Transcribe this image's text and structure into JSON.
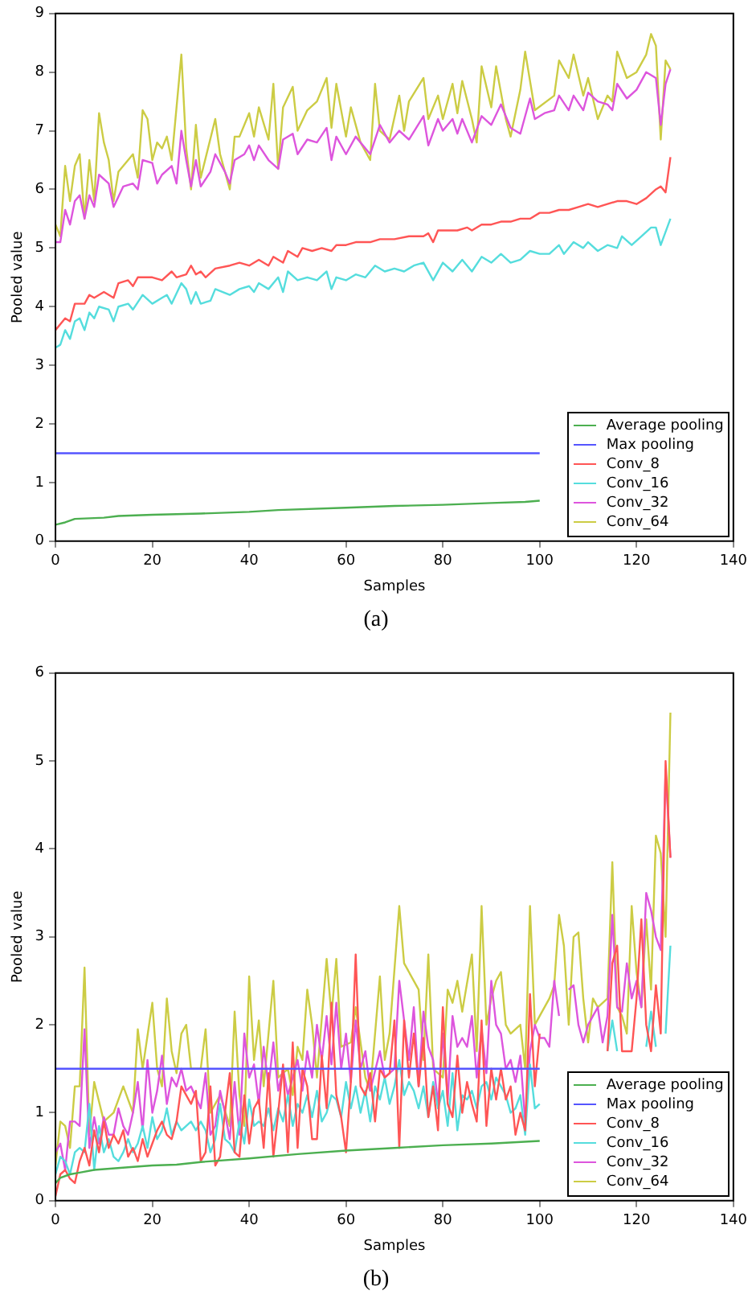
{
  "chart_data": [
    {
      "type": "line",
      "xlabel": "Samples",
      "ylabel": "Pooled value",
      "xlim": [
        0,
        140
      ],
      "xticks": [
        0,
        20,
        40,
        60,
        80,
        100,
        120,
        140
      ],
      "ylim": [
        0,
        9
      ],
      "yticks": [
        0,
        1,
        2,
        3,
        4,
        5,
        6,
        7,
        8,
        9
      ],
      "grid": false,
      "legend": "bottom right",
      "marker": "none",
      "line_style": "solid",
      "annotations": [
        "(a)"
      ],
      "series": [
        {
          "name": "Average pooling",
          "color": "#4caf50",
          "x": [
            0,
            2,
            4,
            10,
            13,
            20,
            30,
            40,
            46,
            60,
            70,
            80,
            90,
            97,
            100
          ],
          "values": [
            0.28,
            0.32,
            0.38,
            0.4,
            0.43,
            0.45,
            0.47,
            0.5,
            0.53,
            0.57,
            0.6,
            0.62,
            0.65,
            0.67,
            0.69
          ]
        },
        {
          "name": "Max pooling",
          "color": "#5555ff",
          "x": [
            0,
            100
          ],
          "values": [
            1.5,
            1.5
          ]
        },
        {
          "name": "Conv_8",
          "color": "#ff5555",
          "x": [
            0,
            2,
            3,
            4,
            6,
            7,
            8,
            10,
            12,
            13,
            15,
            16,
            17,
            20,
            22,
            24,
            25,
            27,
            28,
            29,
            30,
            31,
            33,
            36,
            38,
            40,
            42,
            44,
            45,
            47,
            48,
            50,
            51,
            53,
            55,
            57,
            58,
            60,
            62,
            65,
            67,
            70,
            73,
            76,
            77,
            78,
            79,
            81,
            83,
            85,
            86,
            88,
            90,
            92,
            94,
            96,
            98,
            100,
            102,
            104,
            106,
            108,
            110,
            112,
            114,
            116,
            118,
            120,
            122,
            124,
            125,
            126,
            127
          ],
          "values": [
            3.6,
            3.8,
            3.75,
            4.05,
            4.05,
            4.2,
            4.15,
            4.25,
            4.15,
            4.4,
            4.45,
            4.35,
            4.5,
            4.5,
            4.45,
            4.6,
            4.5,
            4.55,
            4.7,
            4.55,
            4.6,
            4.5,
            4.65,
            4.7,
            4.75,
            4.7,
            4.8,
            4.7,
            4.85,
            4.75,
            4.95,
            4.85,
            5.0,
            4.95,
            5.0,
            4.95,
            5.05,
            5.05,
            5.1,
            5.1,
            5.15,
            5.15,
            5.2,
            5.2,
            5.25,
            5.1,
            5.3,
            5.3,
            5.3,
            5.35,
            5.3,
            5.4,
            5.4,
            5.45,
            5.45,
            5.5,
            5.5,
            5.6,
            5.6,
            5.65,
            5.65,
            5.7,
            5.75,
            5.7,
            5.75,
            5.8,
            5.8,
            5.75,
            5.85,
            6.0,
            6.05,
            5.95,
            6.55
          ]
        },
        {
          "name": "Conv_16",
          "color": "#55dddd",
          "x": [
            0,
            1,
            2,
            3,
            4,
            5,
            6,
            7,
            8,
            9,
            11,
            12,
            13,
            15,
            16,
            18,
            20,
            22,
            23,
            24,
            26,
            27,
            28,
            29,
            30,
            32,
            33,
            36,
            38,
            40,
            41,
            42,
            44,
            46,
            47,
            48,
            50,
            52,
            54,
            56,
            57,
            58,
            60,
            62,
            64,
            66,
            68,
            70,
            72,
            74,
            76,
            78,
            80,
            82,
            84,
            86,
            88,
            90,
            92,
            94,
            96,
            98,
            100,
            102,
            104,
            105,
            107,
            109,
            110,
            112,
            114,
            116,
            117,
            119,
            121,
            123,
            124,
            125,
            127
          ],
          "values": [
            3.3,
            3.35,
            3.6,
            3.45,
            3.75,
            3.8,
            3.6,
            3.9,
            3.8,
            4.0,
            3.95,
            3.75,
            4.0,
            4.05,
            3.95,
            4.2,
            4.05,
            4.15,
            4.2,
            4.05,
            4.4,
            4.3,
            4.05,
            4.25,
            4.05,
            4.1,
            4.3,
            4.2,
            4.3,
            4.35,
            4.25,
            4.4,
            4.3,
            4.5,
            4.25,
            4.6,
            4.45,
            4.5,
            4.45,
            4.6,
            4.3,
            4.5,
            4.45,
            4.55,
            4.5,
            4.7,
            4.6,
            4.65,
            4.6,
            4.7,
            4.75,
            4.45,
            4.75,
            4.6,
            4.8,
            4.6,
            4.85,
            4.75,
            4.9,
            4.75,
            4.8,
            4.95,
            4.9,
            4.9,
            5.05,
            4.9,
            5.1,
            5.0,
            5.1,
            4.95,
            5.05,
            5.0,
            5.2,
            5.05,
            5.2,
            5.35,
            5.35,
            5.05,
            5.5
          ]
        },
        {
          "name": "Conv_32",
          "color": "#dd55dd",
          "x": [
            0,
            1,
            2,
            3,
            4,
            5,
            6,
            7,
            8,
            9,
            11,
            12,
            14,
            16,
            17,
            18,
            20,
            21,
            22,
            24,
            25,
            26,
            27,
            28,
            29,
            30,
            32,
            33,
            35,
            36,
            37,
            39,
            40,
            41,
            42,
            44,
            46,
            47,
            49,
            50,
            52,
            54,
            56,
            57,
            58,
            60,
            62,
            65,
            67,
            69,
            71,
            73,
            76,
            77,
            79,
            80,
            82,
            83,
            84,
            86,
            88,
            90,
            92,
            94,
            96,
            98,
            99,
            101,
            103,
            104,
            106,
            107,
            109,
            110,
            112,
            114,
            115,
            116,
            118,
            120,
            122,
            124,
            125,
            126,
            127
          ],
          "values": [
            5.1,
            5.1,
            5.65,
            5.4,
            5.8,
            5.9,
            5.5,
            5.9,
            5.7,
            6.25,
            6.1,
            5.7,
            6.05,
            6.1,
            6.0,
            6.5,
            6.45,
            6.1,
            6.25,
            6.4,
            6.1,
            7.0,
            6.5,
            6.05,
            6.5,
            6.05,
            6.3,
            6.6,
            6.3,
            6.1,
            6.5,
            6.6,
            6.75,
            6.5,
            6.75,
            6.5,
            6.35,
            6.85,
            6.95,
            6.6,
            6.85,
            6.8,
            7.05,
            6.5,
            6.9,
            6.6,
            6.9,
            6.6,
            7.1,
            6.8,
            7.0,
            6.85,
            7.25,
            6.75,
            7.2,
            7.0,
            7.2,
            6.95,
            7.2,
            6.8,
            7.25,
            7.1,
            7.45,
            7.05,
            6.95,
            7.55,
            7.2,
            7.3,
            7.35,
            7.6,
            7.35,
            7.6,
            7.35,
            7.65,
            7.5,
            7.45,
            7.35,
            7.8,
            7.55,
            7.7,
            8.0,
            7.9,
            7.1,
            7.8,
            8.05
          ]
        },
        {
          "name": "Conv_64",
          "color": "#cccc44",
          "x": [
            0,
            1,
            2,
            3,
            4,
            5,
            6,
            7,
            8,
            9,
            10,
            11,
            12,
            13,
            15,
            16,
            17,
            18,
            19,
            20,
            21,
            22,
            23,
            24,
            26,
            27,
            28,
            29,
            30,
            33,
            34,
            36,
            37,
            38,
            40,
            41,
            42,
            44,
            45,
            46,
            47,
            49,
            50,
            52,
            54,
            56,
            57,
            58,
            60,
            61,
            63,
            65,
            66,
            67,
            69,
            71,
            72,
            73,
            76,
            77,
            79,
            80,
            82,
            83,
            84,
            86,
            87,
            88,
            90,
            91,
            93,
            94,
            96,
            97,
            99,
            103,
            104,
            106,
            107,
            109,
            110,
            112,
            114,
            115,
            116,
            118,
            120,
            122,
            123,
            124,
            125,
            126,
            127
          ],
          "values": [
            5.4,
            5.2,
            6.4,
            5.8,
            6.4,
            6.6,
            5.5,
            6.5,
            5.8,
            7.3,
            6.8,
            6.5,
            5.8,
            6.3,
            6.5,
            6.6,
            6.2,
            7.35,
            7.2,
            6.5,
            6.8,
            6.7,
            6.9,
            6.5,
            8.3,
            6.7,
            6.0,
            7.1,
            6.2,
            7.2,
            6.6,
            6.0,
            6.9,
            6.9,
            7.3,
            6.9,
            7.4,
            6.85,
            7.8,
            6.35,
            7.4,
            7.75,
            7.0,
            7.35,
            7.5,
            7.9,
            7.05,
            7.8,
            6.9,
            7.4,
            6.8,
            6.5,
            7.8,
            7.0,
            6.85,
            7.6,
            7.0,
            7.5,
            7.9,
            7.2,
            7.6,
            7.2,
            7.8,
            7.3,
            7.85,
            7.2,
            6.8,
            8.1,
            7.4,
            8.1,
            7.2,
            6.9,
            7.7,
            8.35,
            7.35,
            7.6,
            8.2,
            7.9,
            8.3,
            7.6,
            7.9,
            7.2,
            7.6,
            7.5,
            8.35,
            7.9,
            8.0,
            8.3,
            8.65,
            8.45,
            6.85,
            8.2,
            8.05
          ]
        }
      ]
    },
    {
      "type": "line",
      "xlabel": "Samples",
      "ylabel": "Pooled value",
      "xlim": [
        0,
        140
      ],
      "xticks": [
        0,
        20,
        40,
        60,
        80,
        100,
        120,
        140
      ],
      "ylim": [
        0,
        6
      ],
      "yticks": [
        0,
        1,
        2,
        3,
        4,
        5,
        6
      ],
      "grid": false,
      "legend": "bottom right",
      "marker": "none",
      "line_style": "solid",
      "annotations": [
        "(b)"
      ],
      "series": [
        {
          "name": "Average pooling",
          "color": "#4caf50",
          "x": [
            0,
            1,
            3,
            5,
            8,
            15,
            20,
            25,
            30,
            40,
            50,
            60,
            70,
            80,
            90,
            100
          ],
          "values": [
            0.2,
            0.26,
            0.3,
            0.32,
            0.35,
            0.38,
            0.4,
            0.41,
            0.44,
            0.48,
            0.53,
            0.57,
            0.6,
            0.63,
            0.65,
            0.68
          ]
        },
        {
          "name": "Max pooling",
          "color": "#5555ff",
          "x": [
            0,
            100
          ],
          "values": [
            1.5,
            1.5
          ]
        },
        {
          "name": "Conv_8",
          "color": "#ff5555",
          "x": [
            0,
            1,
            2,
            3,
            4,
            5,
            6,
            7,
            8,
            9,
            10,
            11,
            12,
            13,
            14,
            15,
            16,
            17,
            18,
            19,
            20,
            21,
            22,
            23,
            24,
            25,
            26,
            27,
            28,
            29,
            30,
            31,
            32,
            33,
            34,
            35,
            36,
            37,
            38,
            39,
            40,
            41,
            42,
            43,
            44,
            45,
            46,
            47,
            48,
            49,
            50,
            51,
            52,
            53,
            54,
            55,
            56,
            57,
            58,
            59,
            60,
            61,
            62,
            63,
            64,
            65,
            66,
            67,
            68,
            69,
            70,
            71,
            72,
            73,
            74,
            75,
            76,
            77,
            78,
            79,
            80,
            81,
            82,
            83,
            84,
            85,
            86,
            87,
            88,
            89,
            90,
            91,
            92,
            93,
            94,
            95,
            96,
            97,
            98,
            99,
            100,
            101,
            114,
            115,
            116,
            117,
            119,
            120,
            121,
            122,
            123,
            124,
            125,
            126,
            127
          ],
          "values": [
            0.05,
            0.3,
            0.35,
            0.25,
            0.2,
            0.45,
            0.6,
            0.4,
            0.8,
            0.55,
            0.9,
            0.6,
            0.75,
            0.65,
            0.8,
            0.5,
            0.6,
            0.45,
            0.7,
            0.5,
            0.65,
            0.8,
            0.9,
            0.75,
            0.7,
            0.9,
            1.3,
            1.2,
            1.1,
            1.25,
            0.45,
            0.55,
            1.3,
            0.4,
            0.5,
            1.0,
            1.45,
            0.55,
            0.5,
            1.2,
            0.65,
            1.05,
            1.15,
            0.6,
            1.45,
            0.5,
            1.0,
            1.55,
            0.55,
            1.8,
            0.6,
            1.5,
            1.3,
            0.7,
            0.7,
            1.65,
            1.05,
            2.25,
            1.2,
            0.95,
            0.55,
            1.35,
            2.8,
            1.3,
            1.2,
            1.45,
            0.9,
            1.5,
            1.4,
            1.45,
            2.05,
            0.6,
            2.05,
            1.4,
            1.9,
            1.3,
            1.85,
            0.95,
            1.3,
            0.8,
            2.2,
            1.1,
            0.95,
            1.65,
            1.0,
            1.35,
            1.1,
            0.9,
            2.05,
            0.85,
            1.5,
            1.15,
            1.5,
            1.15,
            1.3,
            0.75,
            1.0,
            0.8,
            2.35,
            1.3,
            1.9,
            null,
            1.7,
            2.7,
            2.9,
            1.7,
            1.7,
            2.3,
            3.2,
            2.0,
            1.7,
            2.45,
            1.9,
            5.0,
            3.9
          ]
        },
        {
          "name": "Conv_16",
          "color": "#55dddd",
          "x": [
            0,
            1,
            2,
            3,
            4,
            5,
            6,
            7,
            8,
            9,
            10,
            11,
            12,
            13,
            14,
            15,
            16,
            17,
            18,
            19,
            20,
            21,
            22,
            23,
            24,
            25,
            26,
            27,
            28,
            29,
            30,
            31,
            32,
            33,
            34,
            35,
            36,
            37,
            38,
            39,
            40,
            41,
            42,
            43,
            44,
            45,
            46,
            47,
            48,
            49,
            50,
            51,
            52,
            53,
            54,
            55,
            56,
            57,
            58,
            59,
            60,
            61,
            62,
            63,
            64,
            65,
            66,
            67,
            68,
            69,
            70,
            71,
            72,
            73,
            74,
            75,
            76,
            77,
            78,
            79,
            80,
            81,
            82,
            83,
            84,
            85,
            86,
            87,
            88,
            89,
            90,
            91,
            92,
            93,
            94,
            95,
            96,
            97,
            98,
            99,
            100,
            101,
            114,
            115,
            116,
            117,
            122,
            123,
            124,
            125,
            126,
            127
          ],
          "values": [
            0.3,
            0.5,
            0.45,
            0.3,
            0.55,
            0.6,
            0.55,
            1.1,
            0.35,
            0.85,
            0.55,
            0.7,
            0.5,
            0.45,
            0.55,
            0.7,
            0.55,
            0.65,
            0.85,
            0.6,
            0.95,
            0.7,
            0.8,
            1.05,
            0.75,
            0.9,
            0.8,
            0.85,
            0.9,
            0.8,
            0.9,
            0.8,
            0.55,
            0.7,
            1.1,
            0.7,
            0.65,
            0.55,
            0.9,
            0.65,
            1.15,
            0.85,
            0.9,
            0.85,
            1.05,
            0.8,
            1.05,
            0.9,
            1.2,
            0.85,
            1.1,
            1.0,
            1.2,
            0.95,
            1.25,
            0.9,
            1.0,
            1.2,
            1.15,
            0.95,
            1.35,
            1.05,
            1.3,
            1.0,
            1.25,
            0.9,
            1.3,
            1.15,
            1.4,
            1.1,
            1.3,
            1.6,
            1.2,
            1.35,
            1.25,
            1.05,
            1.3,
            0.95,
            1.35,
            1.05,
            1.25,
            0.85,
            1.45,
            0.8,
            1.2,
            1.15,
            1.25,
            1.05,
            1.3,
            1.35,
            1.15,
            1.4,
            1.3,
            1.2,
            1.0,
            1.05,
            1.2,
            0.75,
            1.55,
            1.05,
            1.1,
            null,
            1.7,
            2.05,
            1.7,
            null,
            1.75,
            2.15,
            1.75,
            null,
            1.9,
            2.9
          ]
        },
        {
          "name": "Conv_32",
          "color": "#dd55dd",
          "x": [
            0,
            1,
            2,
            3,
            4,
            5,
            6,
            7,
            8,
            9,
            10,
            11,
            12,
            13,
            14,
            15,
            16,
            17,
            18,
            19,
            20,
            21,
            22,
            23,
            24,
            25,
            26,
            27,
            28,
            30,
            31,
            32,
            33,
            34,
            35,
            36,
            37,
            38,
            39,
            40,
            41,
            42,
            43,
            44,
            45,
            46,
            47,
            48,
            50,
            51,
            52,
            53,
            54,
            55,
            56,
            57,
            58,
            59,
            60,
            61,
            62,
            63,
            64,
            65,
            67,
            68,
            70,
            71,
            72,
            73,
            74,
            75,
            76,
            77,
            78,
            79,
            80,
            81,
            82,
            83,
            84,
            85,
            86,
            87,
            88,
            89,
            90,
            91,
            92,
            93,
            94,
            95,
            96,
            97,
            98,
            99,
            100,
            101,
            102,
            103,
            104,
            105,
            106,
            107,
            108,
            109,
            110,
            111,
            112,
            113,
            114,
            115,
            116,
            117,
            118,
            119,
            120,
            121,
            122,
            123,
            124,
            125,
            126,
            127
          ],
          "values": [
            0.55,
            0.65,
            0.35,
            0.9,
            0.9,
            0.85,
            1.95,
            0.6,
            0.95,
            0.65,
            0.95,
            0.75,
            0.75,
            1.05,
            0.85,
            0.75,
            1.0,
            1.35,
            0.8,
            1.6,
            1.0,
            1.25,
            1.65,
            1.1,
            1.4,
            1.3,
            1.5,
            1.25,
            1.3,
            1.05,
            1.45,
            0.75,
            0.85,
            1.25,
            1.0,
            0.7,
            1.35,
            0.75,
            1.9,
            1.4,
            1.55,
            1.1,
            1.75,
            1.3,
            1.8,
            1.25,
            1.5,
            1.2,
            1.6,
            1.25,
            1.7,
            1.4,
            2.0,
            1.6,
            2.1,
            1.55,
            2.25,
            1.5,
            1.9,
            1.35,
            2.05,
            1.5,
            1.7,
            1.25,
            1.7,
            1.4,
            1.5,
            2.5,
            2.05,
            1.6,
            2.2,
            1.3,
            2.15,
            1.75,
            1.6,
            1.1,
            1.9,
            1.15,
            2.1,
            1.75,
            1.85,
            1.75,
            2.1,
            1.4,
            1.95,
            1.45,
            2.5,
            2.0,
            1.9,
            1.5,
            1.6,
            1.35,
            1.65,
            0.9,
            1.7,
            2.0,
            1.85,
            1.85,
            1.75,
            2.5,
            2.1,
            null,
            2.4,
            2.45,
            2.0,
            1.8,
            2.0,
            2.1,
            2.2,
            1.8,
            2.1,
            3.25,
            2.2,
            2.15,
            2.7,
            2.3,
            2.5,
            2.2,
            3.5,
            3.3,
            3.0,
            2.85,
            4.9,
            3.9
          ]
        },
        {
          "name": "Conv_64",
          "color": "#cccc44",
          "x": [
            0,
            1,
            2,
            3,
            4,
            5,
            6,
            7,
            8,
            10,
            12,
            14,
            16,
            17,
            18,
            20,
            21,
            22,
            23,
            24,
            25,
            26,
            27,
            28,
            30,
            31,
            32,
            34,
            36,
            37,
            38,
            39,
            40,
            41,
            42,
            43,
            45,
            46,
            48,
            49,
            50,
            51,
            52,
            53,
            54,
            56,
            57,
            58,
            59,
            61,
            62,
            64,
            65,
            67,
            68,
            69,
            71,
            72,
            73,
            75,
            76,
            77,
            78,
            80,
            81,
            82,
            83,
            84,
            86,
            87,
            88,
            89,
            90,
            91,
            92,
            93,
            94,
            96,
            97,
            98,
            99,
            100,
            102,
            103,
            104,
            105,
            106,
            107,
            108,
            109,
            110,
            111,
            112,
            114,
            115,
            116,
            117,
            118,
            119,
            120,
            121,
            122,
            123,
            124,
            125,
            126,
            127
          ],
          "values": [
            0.4,
            0.9,
            0.85,
            0.6,
            1.3,
            1.3,
            2.65,
            0.75,
            1.35,
            0.9,
            1.0,
            1.3,
            1.0,
            1.95,
            1.5,
            2.25,
            1.5,
            1.3,
            2.3,
            1.7,
            1.45,
            1.9,
            2.0,
            1.5,
            1.5,
            1.95,
            1.0,
            1.2,
            0.85,
            2.15,
            1.2,
            0.85,
            2.55,
            1.6,
            2.05,
            1.3,
            2.5,
            1.4,
            1.5,
            1.2,
            1.75,
            1.6,
            2.4,
            2.0,
            1.4,
            2.75,
            2.1,
            2.75,
            1.75,
            1.8,
            2.2,
            1.4,
            1.25,
            2.55,
            1.6,
            1.9,
            3.35,
            2.7,
            2.6,
            2.4,
            1.6,
            2.8,
            1.5,
            1.4,
            2.4,
            2.25,
            2.5,
            2.15,
            2.8,
            1.7,
            3.35,
            2.0,
            2.3,
            2.5,
            2.6,
            2.0,
            1.9,
            2.0,
            1.5,
            3.35,
            2.0,
            2.1,
            2.3,
            2.45,
            3.25,
            2.9,
            2.0,
            3.0,
            3.05,
            2.3,
            1.8,
            2.3,
            2.2,
            2.3,
            3.85,
            2.2,
            2.1,
            1.9,
            3.35,
            2.6,
            2.2,
            3.2,
            2.4,
            4.15,
            3.95,
            3.0,
            5.55
          ]
        }
      ]
    }
  ]
}
